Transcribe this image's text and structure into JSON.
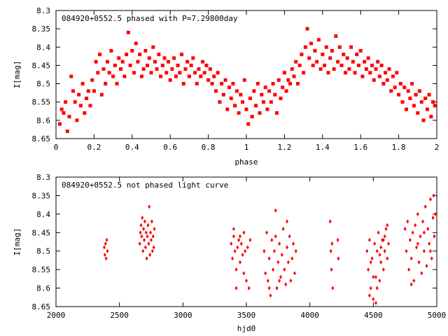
{
  "chart_data": [
    {
      "type": "scatter",
      "title": "084920+0552.5 phased with P=7.29800day",
      "xlabel": "phase",
      "ylabel": "I[mag]",
      "xlim": [
        0,
        2
      ],
      "ylim": [
        8.3,
        8.65
      ],
      "y_inverted": true,
      "grid": false,
      "legend": "none",
      "marker_color": "#ff0000",
      "xticks": [
        0,
        0.2,
        0.4,
        0.6,
        0.8,
        1,
        1.2,
        1.4,
        1.6,
        1.8,
        2
      ],
      "xtick_labels": [
        "0",
        "0.2",
        "0.4",
        "0.6",
        "0.8",
        "1",
        "1.2",
        "1.4",
        "1.6",
        "1.8",
        "2"
      ],
      "yticks": [
        8.3,
        8.35,
        8.4,
        8.45,
        8.5,
        8.55,
        8.6,
        8.65
      ],
      "ytick_labels": [
        "8.3",
        "8.35",
        "8.4",
        "8.45",
        "8.5",
        "8.55",
        "8.6",
        "8.65"
      ],
      "points": [
        [
          0.02,
          8.61
        ],
        [
          0.03,
          8.57
        ],
        [
          0.04,
          8.58
        ],
        [
          0.05,
          8.55
        ],
        [
          0.06,
          8.63
        ],
        [
          0.07,
          8.59
        ],
        [
          0.08,
          8.48
        ],
        [
          0.09,
          8.52
        ],
        [
          0.1,
          8.55
        ],
        [
          0.11,
          8.6
        ],
        [
          0.12,
          8.53
        ],
        [
          0.13,
          8.56
        ],
        [
          0.14,
          8.5
        ],
        [
          0.15,
          8.58
        ],
        [
          0.16,
          8.54
        ],
        [
          0.17,
          8.52
        ],
        [
          0.18,
          8.56
        ],
        [
          0.19,
          8.49
        ],
        [
          0.2,
          8.52
        ],
        [
          0.21,
          8.44
        ],
        [
          0.22,
          8.47
        ],
        [
          0.23,
          8.42
        ],
        [
          0.24,
          8.53
        ],
        [
          0.25,
          8.46
        ],
        [
          0.26,
          8.5
        ],
        [
          0.27,
          8.44
        ],
        [
          0.28,
          8.47
        ],
        [
          0.29,
          8.41
        ],
        [
          0.3,
          8.48
        ],
        [
          0.31,
          8.45
        ],
        [
          0.32,
          8.5
        ],
        [
          0.33,
          8.43
        ],
        [
          0.34,
          8.46
        ],
        [
          0.35,
          8.44
        ],
        [
          0.36,
          8.48
        ],
        [
          0.37,
          8.42
        ],
        [
          0.38,
          8.36
        ],
        [
          0.39,
          8.45
        ],
        [
          0.4,
          8.41
        ],
        [
          0.41,
          8.47
        ],
        [
          0.42,
          8.39
        ],
        [
          0.43,
          8.44
        ],
        [
          0.44,
          8.42
        ],
        [
          0.45,
          8.48
        ],
        [
          0.46,
          8.46
        ],
        [
          0.47,
          8.41
        ],
        [
          0.48,
          8.45
        ],
        [
          0.49,
          8.43
        ],
        [
          0.5,
          8.47
        ],
        [
          0.51,
          8.4
        ],
        [
          0.52,
          8.44
        ],
        [
          0.53,
          8.46
        ],
        [
          0.54,
          8.42
        ],
        [
          0.55,
          8.48
        ],
        [
          0.56,
          8.45
        ],
        [
          0.57,
          8.43
        ],
        [
          0.58,
          8.47
        ],
        [
          0.59,
          8.44
        ],
        [
          0.6,
          8.49
        ],
        [
          0.61,
          8.46
        ],
        [
          0.62,
          8.43
        ],
        [
          0.63,
          8.48
        ],
        [
          0.64,
          8.45
        ],
        [
          0.65,
          8.47
        ],
        [
          0.66,
          8.42
        ],
        [
          0.67,
          8.5
        ],
        [
          0.68,
          8.46
        ],
        [
          0.69,
          8.44
        ],
        [
          0.7,
          8.48
        ],
        [
          0.71,
          8.45
        ],
        [
          0.72,
          8.43
        ],
        [
          0.73,
          8.47
        ],
        [
          0.74,
          8.5
        ],
        [
          0.75,
          8.46
        ],
        [
          0.76,
          8.48
        ],
        [
          0.77,
          8.44
        ],
        [
          0.78,
          8.47
        ],
        [
          0.79,
          8.45
        ],
        [
          0.8,
          8.49
        ],
        [
          0.81,
          8.46
        ],
        [
          0.82,
          8.5
        ],
        [
          0.83,
          8.48
        ],
        [
          0.84,
          8.52
        ],
        [
          0.85,
          8.47
        ],
        [
          0.86,
          8.55
        ],
        [
          0.87,
          8.5
        ],
        [
          0.88,
          8.53
        ],
        [
          0.89,
          8.49
        ],
        [
          0.9,
          8.57
        ],
        [
          0.91,
          8.51
        ],
        [
          0.92,
          8.54
        ],
        [
          0.93,
          8.5
        ],
        [
          0.94,
          8.56
        ],
        [
          0.95,
          8.52
        ],
        [
          0.96,
          8.58
        ],
        [
          0.97,
          8.53
        ],
        [
          0.98,
          8.55
        ],
        [
          0.99,
          8.49
        ],
        [
          1.0,
          8.57
        ],
        [
          1.01,
          8.61
        ],
        [
          1.02,
          8.54
        ],
        [
          1.03,
          8.59
        ],
        [
          1.04,
          8.52
        ],
        [
          1.05,
          8.56
        ],
        [
          1.06,
          8.5
        ],
        [
          1.07,
          8.58
        ],
        [
          1.08,
          8.53
        ],
        [
          1.09,
          8.55
        ],
        [
          1.1,
          8.51
        ],
        [
          1.11,
          8.57
        ],
        [
          1.12,
          8.52
        ],
        [
          1.13,
          8.55
        ],
        [
          1.14,
          8.5
        ],
        [
          1.15,
          8.53
        ],
        [
          1.16,
          8.58
        ],
        [
          1.17,
          8.49
        ],
        [
          1.18,
          8.54
        ],
        [
          1.19,
          8.51
        ],
        [
          1.2,
          8.47
        ],
        [
          1.21,
          8.52
        ],
        [
          1.22,
          8.49
        ],
        [
          1.23,
          8.5
        ],
        [
          1.24,
          8.46
        ],
        [
          1.25,
          8.48
        ],
        [
          1.26,
          8.44
        ],
        [
          1.27,
          8.5
        ],
        [
          1.28,
          8.45
        ],
        [
          1.29,
          8.42
        ],
        [
          1.3,
          8.47
        ],
        [
          1.31,
          8.4
        ],
        [
          1.32,
          8.35
        ],
        [
          1.33,
          8.43
        ],
        [
          1.34,
          8.39
        ],
        [
          1.35,
          8.45
        ],
        [
          1.36,
          8.41
        ],
        [
          1.37,
          8.44
        ],
        [
          1.38,
          8.38
        ],
        [
          1.39,
          8.46
        ],
        [
          1.4,
          8.42
        ],
        [
          1.41,
          8.45
        ],
        [
          1.42,
          8.4
        ],
        [
          1.43,
          8.47
        ],
        [
          1.44,
          8.43
        ],
        [
          1.45,
          8.41
        ],
        [
          1.46,
          8.46
        ],
        [
          1.47,
          8.37
        ],
        [
          1.48,
          8.44
        ],
        [
          1.49,
          8.4
        ],
        [
          1.5,
          8.45
        ],
        [
          1.51,
          8.42
        ],
        [
          1.52,
          8.47
        ],
        [
          1.53,
          8.43
        ],
        [
          1.54,
          8.46
        ],
        [
          1.55,
          8.4
        ],
        [
          1.56,
          8.44
        ],
        [
          1.57,
          8.47
        ],
        [
          1.58,
          8.42
        ],
        [
          1.59,
          8.45
        ],
        [
          1.6,
          8.41
        ],
        [
          1.61,
          8.48
        ],
        [
          1.62,
          8.44
        ],
        [
          1.63,
          8.46
        ],
        [
          1.64,
          8.43
        ],
        [
          1.65,
          8.47
        ],
        [
          1.66,
          8.45
        ],
        [
          1.67,
          8.49
        ],
        [
          1.68,
          8.46
        ],
        [
          1.69,
          8.44
        ],
        [
          1.7,
          8.48
        ],
        [
          1.71,
          8.45
        ],
        [
          1.72,
          8.5
        ],
        [
          1.73,
          8.47
        ],
        [
          1.74,
          8.49
        ],
        [
          1.75,
          8.46
        ],
        [
          1.76,
          8.52
        ],
        [
          1.77,
          8.48
        ],
        [
          1.78,
          8.51
        ],
        [
          1.79,
          8.47
        ],
        [
          1.8,
          8.53
        ],
        [
          1.81,
          8.5
        ],
        [
          1.82,
          8.55
        ],
        [
          1.83,
          8.51
        ],
        [
          1.84,
          8.57
        ],
        [
          1.85,
          8.52
        ],
        [
          1.86,
          8.54
        ],
        [
          1.87,
          8.5
        ],
        [
          1.88,
          8.56
        ],
        [
          1.89,
          8.53
        ],
        [
          1.9,
          8.58
        ],
        [
          1.91,
          8.52
        ],
        [
          1.92,
          8.55
        ],
        [
          1.93,
          8.6
        ],
        [
          1.94,
          8.54
        ],
        [
          1.95,
          8.57
        ],
        [
          1.96,
          8.53
        ],
        [
          1.97,
          8.59
        ],
        [
          1.98,
          8.55
        ],
        [
          1.99,
          8.56
        ]
      ]
    },
    {
      "type": "scatter",
      "title": "084920+0552.5 not phased light curve",
      "xlabel": "hjd0",
      "ylabel": "I[mag]",
      "xlim": [
        2000,
        5000
      ],
      "ylim": [
        8.3,
        8.65
      ],
      "y_inverted": true,
      "grid": false,
      "legend": "none",
      "marker_color": "#ff0000",
      "xticks": [
        2000,
        2500,
        3000,
        3500,
        4000,
        4500,
        5000
      ],
      "xtick_labels": [
        "2000",
        "2500",
        "3000",
        "3500",
        "4000",
        "4500",
        "5000"
      ],
      "yticks": [
        8.3,
        8.35,
        8.4,
        8.45,
        8.5,
        8.55,
        8.6,
        8.65
      ],
      "ytick_labels": [
        "8.3",
        "8.35",
        "8.4",
        "8.45",
        "8.5",
        "8.55",
        "8.6",
        "8.65"
      ],
      "points": [
        [
          2380,
          8.49
        ],
        [
          2385,
          8.51
        ],
        [
          2390,
          8.48
        ],
        [
          2395,
          8.52
        ],
        [
          2400,
          8.47
        ],
        [
          2405,
          8.5
        ],
        [
          2660,
          8.48
        ],
        [
          2665,
          8.45
        ],
        [
          2670,
          8.43
        ],
        [
          2675,
          8.46
        ],
        [
          2680,
          8.41
        ],
        [
          2685,
          8.5
        ],
        [
          2690,
          8.44
        ],
        [
          2695,
          8.47
        ],
        [
          2700,
          8.42
        ],
        [
          2705,
          8.49
        ],
        [
          2710,
          8.45
        ],
        [
          2715,
          8.52
        ],
        [
          2720,
          8.46
        ],
        [
          2725,
          8.43
        ],
        [
          2730,
          8.48
        ],
        [
          2735,
          8.38
        ],
        [
          2740,
          8.51
        ],
        [
          2745,
          8.45
        ],
        [
          2750,
          8.47
        ],
        [
          2755,
          8.42
        ],
        [
          2760,
          8.5
        ],
        [
          2765,
          8.46
        ],
        [
          2770,
          8.49
        ],
        [
          2775,
          8.44
        ],
        [
          3380,
          8.48
        ],
        [
          3390,
          8.52
        ],
        [
          3400,
          8.46
        ],
        [
          3410,
          8.5
        ],
        [
          3420,
          8.55
        ],
        [
          3430,
          8.49
        ],
        [
          3440,
          8.47
        ],
        [
          3450,
          8.53
        ],
        [
          3460,
          8.48
        ],
        [
          3470,
          8.51
        ],
        [
          3480,
          8.45
        ],
        [
          3490,
          8.5
        ],
        [
          3500,
          8.58
        ],
        [
          3510,
          8.49
        ],
        [
          3520,
          8.6
        ],
        [
          3530,
          8.47
        ],
        [
          3400,
          8.44
        ],
        [
          3450,
          8.46
        ],
        [
          3420,
          8.6
        ],
        [
          3480,
          8.56
        ],
        [
          3640,
          8.5
        ],
        [
          3650,
          8.56
        ],
        [
          3660,
          8.45
        ],
        [
          3670,
          8.58
        ],
        [
          3680,
          8.52
        ],
        [
          3690,
          8.62
        ],
        [
          3700,
          8.47
        ],
        [
          3710,
          8.55
        ],
        [
          3720,
          8.5
        ],
        [
          3730,
          8.46
        ],
        [
          3740,
          8.6
        ],
        [
          3750,
          8.53
        ],
        [
          3760,
          8.48
        ],
        [
          3770,
          8.57
        ],
        [
          3780,
          8.51
        ],
        [
          3790,
          8.44
        ],
        [
          3800,
          8.55
        ],
        [
          3810,
          8.59
        ],
        [
          3820,
          8.49
        ],
        [
          3830,
          8.53
        ],
        [
          3840,
          8.46
        ],
        [
          3850,
          8.58
        ],
        [
          3860,
          8.52
        ],
        [
          3870,
          8.48
        ],
        [
          3880,
          8.56
        ],
        [
          3890,
          8.5
        ],
        [
          3730,
          8.39
        ],
        [
          3680,
          8.6
        ],
        [
          3760,
          8.58
        ],
        [
          3820,
          8.42
        ],
        [
          4160,
          8.42
        ],
        [
          4165,
          8.5
        ],
        [
          4170,
          8.55
        ],
        [
          4175,
          8.48
        ],
        [
          4180,
          8.6
        ],
        [
          4220,
          8.47
        ],
        [
          4225,
          8.52
        ],
        [
          4450,
          8.5
        ],
        [
          4460,
          8.55
        ],
        [
          4470,
          8.47
        ],
        [
          4480,
          8.6
        ],
        [
          4490,
          8.52
        ],
        [
          4500,
          8.63
        ],
        [
          4510,
          8.48
        ],
        [
          4520,
          8.57
        ],
        [
          4530,
          8.5
        ],
        [
          4540,
          8.45
        ],
        [
          4550,
          8.58
        ],
        [
          4560,
          8.53
        ],
        [
          4570,
          8.47
        ],
        [
          4580,
          8.55
        ],
        [
          4590,
          8.5
        ],
        [
          4600,
          8.44
        ],
        [
          4610,
          8.52
        ],
        [
          4620,
          8.48
        ],
        [
          4470,
          8.62
        ],
        [
          4500,
          8.57
        ],
        [
          4530,
          8.6
        ],
        [
          4560,
          8.49
        ],
        [
          4590,
          8.46
        ],
        [
          4610,
          8.43
        ],
        [
          4480,
          8.53
        ],
        [
          4520,
          8.64
        ],
        [
          4550,
          8.51
        ],
        [
          4580,
          8.47
        ],
        [
          4750,
          8.44
        ],
        [
          4760,
          8.5
        ],
        [
          4770,
          8.42
        ],
        [
          4780,
          8.55
        ],
        [
          4790,
          8.47
        ],
        [
          4800,
          8.52
        ],
        [
          4810,
          8.45
        ],
        [
          4820,
          8.58
        ],
        [
          4830,
          8.43
        ],
        [
          4840,
          8.49
        ],
        [
          4850,
          8.4
        ],
        [
          4860,
          8.53
        ],
        [
          4870,
          8.46
        ],
        [
          4880,
          8.56
        ],
        [
          4890,
          8.42
        ],
        [
          4900,
          8.5
        ],
        [
          4910,
          8.38
        ],
        [
          4920,
          8.54
        ],
        [
          4930,
          8.44
        ],
        [
          4940,
          8.48
        ],
        [
          4950,
          8.36
        ],
        [
          4960,
          8.52
        ],
        [
          4970,
          8.41
        ],
        [
          4980,
          8.46
        ],
        [
          4990,
          8.4
        ],
        [
          4800,
          8.59
        ],
        [
          4850,
          8.48
        ],
        [
          4900,
          8.45
        ],
        [
          4950,
          8.5
        ],
        [
          4975,
          8.35
        ]
      ]
    }
  ]
}
